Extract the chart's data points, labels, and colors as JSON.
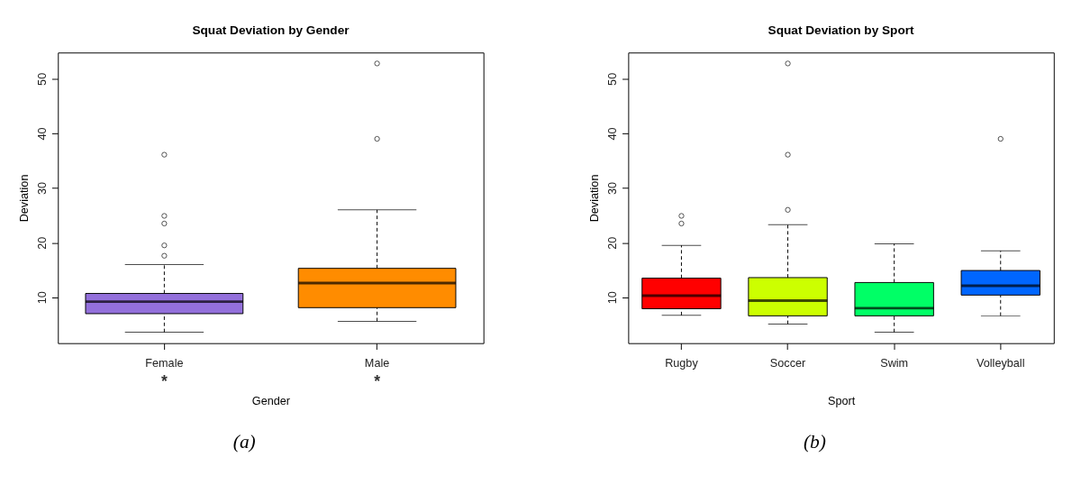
{
  "chart_data": [
    {
      "type": "box",
      "title": "Squat Deviation by Gender",
      "xlabel": "Gender",
      "ylabel": "Deviation",
      "categories": [
        "Female",
        "Male"
      ],
      "colors": [
        "#9370db",
        "#ff8c00"
      ],
      "boxes": [
        {
          "low": 3.6,
          "q1": 7.0,
          "median": 9.2,
          "q3": 10.7,
          "high": 16.0,
          "outliers": [
            36.1,
            24.9,
            23.5,
            19.5,
            17.6
          ]
        },
        {
          "low": 5.6,
          "q1": 8.1,
          "median": 12.6,
          "q3": 15.3,
          "high": 26.0,
          "outliers": [
            39.0,
            52.8
          ]
        }
      ],
      "ylim": [
        1.6,
        54.8
      ],
      "yticks": [
        10,
        20,
        30,
        40,
        50
      ],
      "grid": false,
      "legend": false,
      "annotations": [
        "*",
        "*",
        "(a)"
      ]
    },
    {
      "type": "box",
      "title": "Squat Deviation by Sport",
      "xlabel": "Sport",
      "ylabel": "Deviation",
      "categories": [
        "Rugby",
        "Soccer",
        "Swim",
        "Volleyball"
      ],
      "colors": [
        "#ff0000",
        "#ccff00",
        "#00ff66",
        "#0066ff"
      ],
      "boxes": [
        {
          "low": 6.7,
          "q1": 7.9,
          "median": 10.3,
          "q3": 13.5,
          "high": 19.5,
          "outliers": [
            24.9,
            23.5
          ]
        },
        {
          "low": 5.1,
          "q1": 6.6,
          "median": 9.4,
          "q3": 13.6,
          "high": 23.3,
          "outliers": [
            26.0,
            36.1,
            52.8
          ]
        },
        {
          "low": 3.6,
          "q1": 6.6,
          "median": 8.0,
          "q3": 12.7,
          "high": 19.8
        },
        {
          "low": 6.6,
          "q1": 10.4,
          "median": 12.1,
          "q3": 14.9,
          "high": 18.5,
          "outliers": [
            39.0
          ]
        }
      ],
      "ylim": [
        1.6,
        54.8
      ],
      "yticks": [
        10,
        20,
        30,
        40,
        50
      ],
      "grid": false,
      "legend": false,
      "annotations": [
        "(b)"
      ]
    }
  ]
}
